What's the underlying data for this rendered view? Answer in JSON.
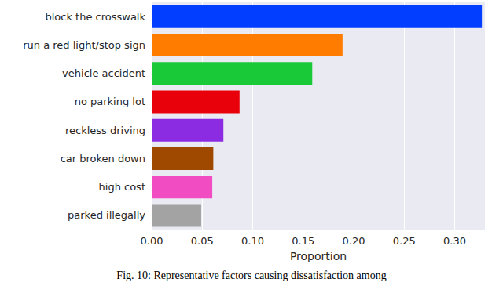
{
  "chart_data": {
    "type": "bar",
    "orientation": "horizontal",
    "title": "Fig. 10: Representative factors causing dissatisfaction among",
    "x_label": "Proportion",
    "categories": [
      "block the crosswalk",
      "run a red light/stop sign",
      "vehicle accident",
      "no parking lot",
      "reckless driving",
      "car broken down",
      "high cost",
      "parked illegally"
    ],
    "values": [
      0.327,
      0.189,
      0.159,
      0.087,
      0.071,
      0.061,
      0.06,
      0.049
    ],
    "colors": [
      "#023eff",
      "#ff7c00",
      "#1ac938",
      "#e8000b",
      "#8b2be2",
      "#9f4800",
      "#f14cc1",
      "#a3a3a3"
    ],
    "xlim": [
      0,
      0.33
    ],
    "xticks": [
      {
        "value": 0,
        "label": "0.00"
      },
      {
        "value": 0.05,
        "label": "0.05"
      },
      {
        "value": 0.1,
        "label": "0.10"
      },
      {
        "value": 0.15,
        "label": "0.15"
      },
      {
        "value": 0.2,
        "label": "0.20"
      },
      {
        "value": 0.25,
        "label": "0.25"
      },
      {
        "value": 0.3,
        "label": "0.30"
      }
    ],
    "grid": true
  }
}
